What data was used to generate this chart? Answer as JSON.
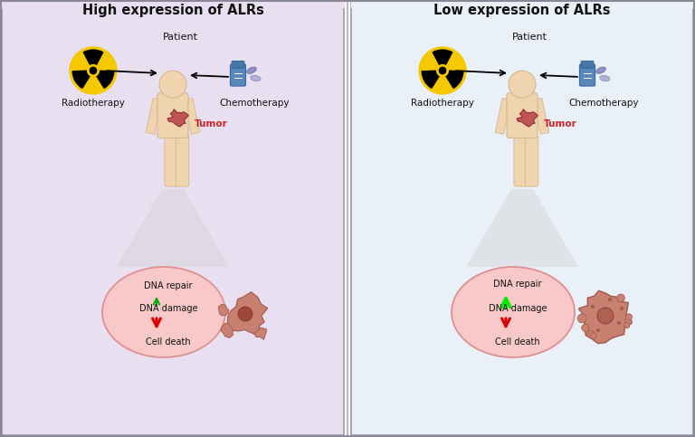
{
  "left_title": "High expression of ALRs",
  "right_title": "Low expression of ALRs",
  "left_bg": "#e8e0f0",
  "right_bg": "#eaf0f8",
  "circle_bg": "#f9c8c8",
  "label_radiotherapy": "Radiotherapy",
  "label_chemotherapy": "Chemotherapy",
  "label_patient": "Patient",
  "label_tumor": "Tumor",
  "label_dna_repair": "DNA repair",
  "label_dna_damage": "DNA damage",
  "label_cell_death": "Cell death",
  "arrow_up_color_left": "#00aa00",
  "arrow_up_color_right": "#00ee00",
  "arrow_down_color": "#dd0000",
  "text_color_dark": "#111111",
  "text_color_tumor": "#cc2222",
  "divider_color": "#bbbbbb",
  "border_color": "#9999aa",
  "person_skin": "#f0d4b0",
  "person_skin_dark": "#d4b890",
  "tumor_color": "#c05050"
}
